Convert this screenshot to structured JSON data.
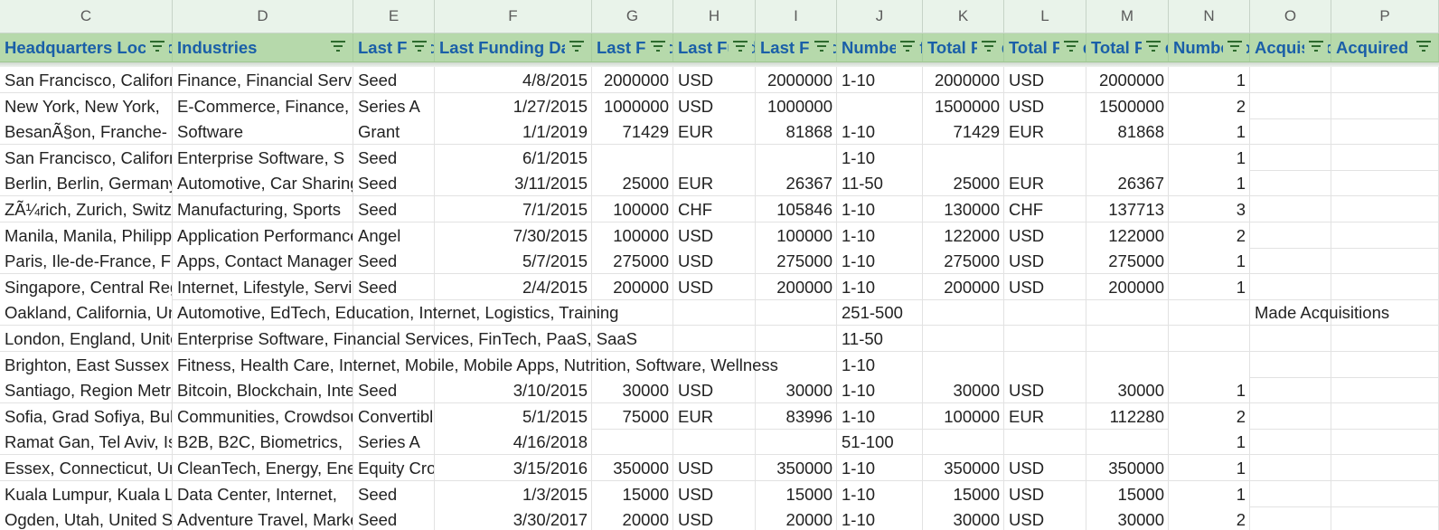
{
  "columns": [
    "C",
    "D",
    "E",
    "F",
    "G",
    "H",
    "I",
    "J",
    "K",
    "L",
    "M",
    "N",
    "O",
    "P"
  ],
  "headers": [
    "Headquarters Location",
    "Industries",
    "Last Funding Type",
    "Last Funding Date",
    "Last Funding Amount",
    "Last Funding Amount Currency",
    "Last Funding Amount Currency (in USD)",
    "Number of Employees",
    "Total Funding Amount",
    "Total Funding Amount Currency",
    "Total Funding Amount Currency (in USD)",
    "Number of Funding Rounds",
    "Acquisition Status",
    "Acquired by"
  ],
  "rows": [
    [
      "San Francisco, California",
      "Finance, Financial Services",
      "Seed",
      "4/8/2015",
      "2000000",
      "USD",
      "2000000",
      "1-10",
      "2000000",
      "USD",
      "2000000",
      "1",
      "",
      ""
    ],
    [
      "New York, New York,",
      "E-Commerce, Finance,",
      "Series A",
      "1/27/2015",
      "1000000",
      "USD",
      "1000000",
      "",
      "1500000",
      "USD",
      "1500000",
      "2",
      "",
      ""
    ],
    [
      "BesanÃ§on, Franche-",
      "Software",
      "Grant",
      "1/1/2019",
      "71429",
      "EUR",
      "81868",
      "1-10",
      "71429",
      "EUR",
      "81868",
      "1",
      "",
      ""
    ],
    [
      "San Francisco, California",
      "Enterprise Software, S",
      "Seed",
      "6/1/2015",
      "",
      "",
      "",
      "1-10",
      "",
      "",
      "",
      "1",
      "",
      ""
    ],
    [
      "Berlin, Berlin, Germany",
      "Automotive, Car Sharing",
      "Seed",
      "3/11/2015",
      "25000",
      "EUR",
      "26367",
      "11-50",
      "25000",
      "EUR",
      "26367",
      "1",
      "",
      ""
    ],
    [
      "ZÃ¼rich, Zurich, Switzerland",
      "Manufacturing, Sports",
      "Seed",
      "7/1/2015",
      "100000",
      "CHF",
      "105846",
      "1-10",
      "130000",
      "CHF",
      "137713",
      "3",
      "",
      ""
    ],
    [
      "Manila, Manila, Philippines",
      "Application Performance",
      "Angel",
      "7/30/2015",
      "100000",
      "USD",
      "100000",
      "1-10",
      "122000",
      "USD",
      "122000",
      "2",
      "",
      ""
    ],
    [
      "Paris, Ile-de-France, France",
      "Apps, Contact Management",
      "Seed",
      "5/7/2015",
      "275000",
      "USD",
      "275000",
      "1-10",
      "275000",
      "USD",
      "275000",
      "1",
      "",
      ""
    ],
    [
      "Singapore, Central Region",
      "Internet, Lifestyle, Services",
      "Seed",
      "2/4/2015",
      "200000",
      "USD",
      "200000",
      "1-10",
      "200000",
      "USD",
      "200000",
      "1",
      "",
      ""
    ],
    [
      "Oakland, California, United States",
      "Automotive, EdTech, Education, Internet, Logistics, Training",
      "",
      "",
      "",
      "",
      "",
      "251-500",
      "",
      "",
      "",
      "",
      "Made Acquisitions",
      ""
    ],
    [
      "London, England, United Kingdom",
      "Enterprise Software, Financial Services, FinTech, PaaS, SaaS",
      "",
      "",
      "",
      "",
      "",
      "11-50",
      "",
      "",
      "",
      "",
      "",
      ""
    ],
    [
      "Brighton, East Sussex",
      "Fitness, Health Care, Internet, Mobile, Mobile Apps, Nutrition, Software, Wellness",
      "",
      "",
      "",
      "",
      "",
      "1-10",
      "",
      "",
      "",
      "",
      "",
      ""
    ],
    [
      "Santiago, Region Metropolitana",
      "Bitcoin, Blockchain, Internet",
      "Seed",
      "3/10/2015",
      "30000",
      "USD",
      "30000",
      "1-10",
      "30000",
      "USD",
      "30000",
      "1",
      "",
      ""
    ],
    [
      "Sofia, Grad Sofiya, Bulgaria",
      "Communities, Crowdsourcing",
      "Convertible Note",
      "5/1/2015",
      "75000",
      "EUR",
      "83996",
      "1-10",
      "100000",
      "EUR",
      "112280",
      "2",
      "",
      ""
    ],
    [
      "Ramat Gan, Tel Aviv, Israel",
      "B2B, B2C, Biometrics,",
      "Series A",
      "4/16/2018",
      "",
      "",
      "",
      "51-100",
      "",
      "",
      "",
      "1",
      "",
      ""
    ],
    [
      "Essex, Connecticut, United States",
      "CleanTech, Energy, Energy",
      "Equity Crowdfunding",
      "3/15/2016",
      "350000",
      "USD",
      "350000",
      "1-10",
      "350000",
      "USD",
      "350000",
      "1",
      "",
      ""
    ],
    [
      "Kuala Lumpur, Kuala Lumpur",
      "Data Center, Internet,",
      "Seed",
      "1/3/2015",
      "15000",
      "USD",
      "15000",
      "1-10",
      "15000",
      "USD",
      "15000",
      "1",
      "",
      ""
    ],
    [
      "Ogden, Utah, United States",
      "Adventure Travel, Marketing",
      "Seed",
      "3/30/2017",
      "20000",
      "USD",
      "20000",
      "1-10",
      "30000",
      "USD",
      "30000",
      "2",
      "",
      ""
    ]
  ]
}
